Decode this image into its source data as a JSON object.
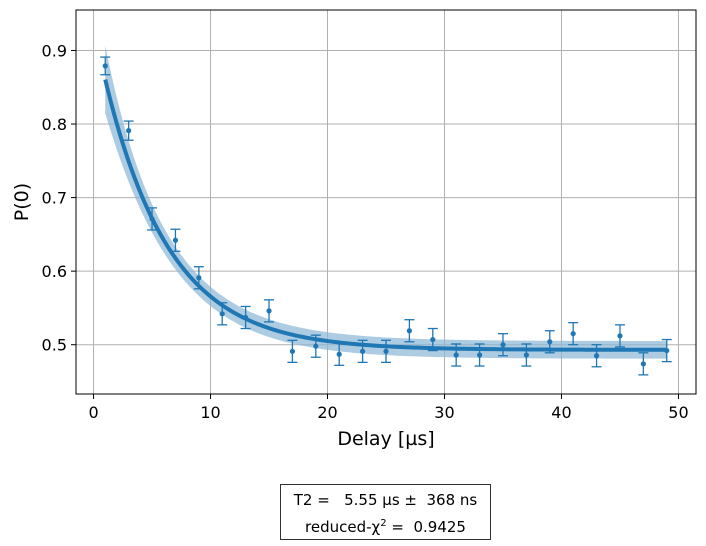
{
  "chart_data": {
    "type": "scatter",
    "xlabel": "Delay [µs]",
    "ylabel": "P(0)",
    "xlim": [
      -1.5,
      51.5
    ],
    "ylim": [
      0.433,
      0.955
    ],
    "x_ticks": [
      0,
      10,
      20,
      30,
      40,
      50
    ],
    "y_ticks": [
      0.5,
      0.6,
      0.7,
      0.8,
      0.9
    ],
    "x_tick_labels": [
      "0",
      "10",
      "20",
      "30",
      "40",
      "50"
    ],
    "y_tick_labels": [
      "0.5",
      "0.6",
      "0.7",
      "0.8",
      "0.9"
    ],
    "grid": true,
    "colors": {
      "data": "#1f77b4",
      "fit": "#1f77b4",
      "band": "#8ab6d6"
    },
    "series": [
      {
        "kind": "measured",
        "x": [
          1,
          3,
          5,
          7,
          9,
          11,
          13,
          15,
          17,
          19,
          21,
          23,
          25,
          27,
          29,
          31,
          33,
          35,
          37,
          39,
          41,
          43,
          45,
          47,
          49
        ],
        "y": [
          0.879,
          0.791,
          0.671,
          0.642,
          0.591,
          0.542,
          0.537,
          0.546,
          0.491,
          0.498,
          0.487,
          0.491,
          0.491,
          0.519,
          0.507,
          0.486,
          0.486,
          0.5,
          0.486,
          0.504,
          0.515,
          0.485,
          0.512,
          0.474,
          0.492
        ],
        "yerr": [
          0.012,
          0.013,
          0.015,
          0.015,
          0.015,
          0.015,
          0.015,
          0.015,
          0.015,
          0.015,
          0.015,
          0.015,
          0.015,
          0.015,
          0.015,
          0.015,
          0.015,
          0.015,
          0.015,
          0.015,
          0.015,
          0.015,
          0.015,
          0.015,
          0.015
        ]
      },
      {
        "kind": "fit",
        "model": "A*exp(-x/T2)+B",
        "params": {
          "A": 0.44,
          "T2": 5.55,
          "B": 0.493
        },
        "x_range": [
          1,
          49
        ]
      }
    ],
    "fit_report": {
      "line1": "T2 =   5.55 µs ±  368 ns",
      "line2_prefix": "reduced-χ",
      "line2_sup": "2",
      "line2_suffix": " =  0.9425"
    }
  }
}
